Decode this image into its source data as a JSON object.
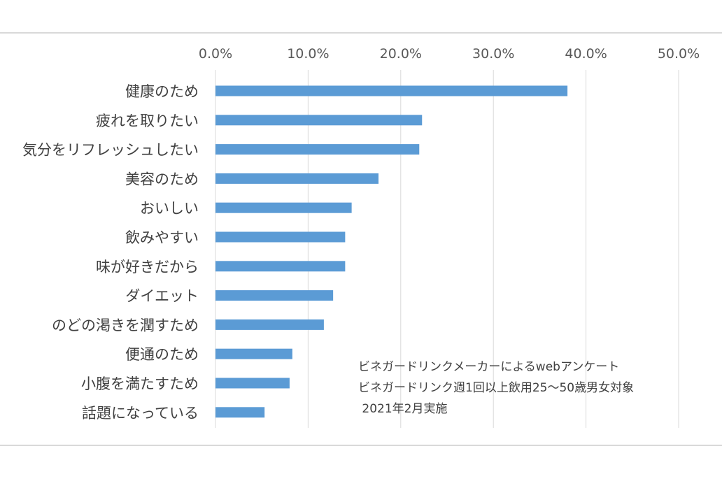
{
  "chart_data": {
    "type": "bar",
    "orientation": "horizontal",
    "categories": [
      "健康のため",
      "疲れを取りたい",
      "気分をリフレッシュしたい",
      "美容のため",
      "おいしい",
      "飲みやすい",
      "味が好きだから",
      "ダイエット",
      "のどの渇きを潤すため",
      "便通のため",
      "小腹を満たすため",
      "話題になっている"
    ],
    "values": [
      38.0,
      22.3,
      22.0,
      17.6,
      14.7,
      14.0,
      14.0,
      12.7,
      11.7,
      8.3,
      8.0,
      5.3
    ],
    "xlim": [
      0,
      50
    ],
    "ticks": [
      0,
      10,
      20,
      30,
      40,
      50
    ],
    "tick_labels": [
      "0.0%",
      "10.0%",
      "20.0%",
      "30.0%",
      "40.0%",
      "50.0%"
    ],
    "bar_color": "#5b9bd5",
    "grid": true,
    "xaxis_position": "top"
  },
  "annotation": {
    "lines": [
      "ビネガードリンクメーカーによるwebアンケート",
      "ビネガードリンク週1回以上飲用25～50歳男女対象",
      " 2021年2月実施"
    ]
  }
}
